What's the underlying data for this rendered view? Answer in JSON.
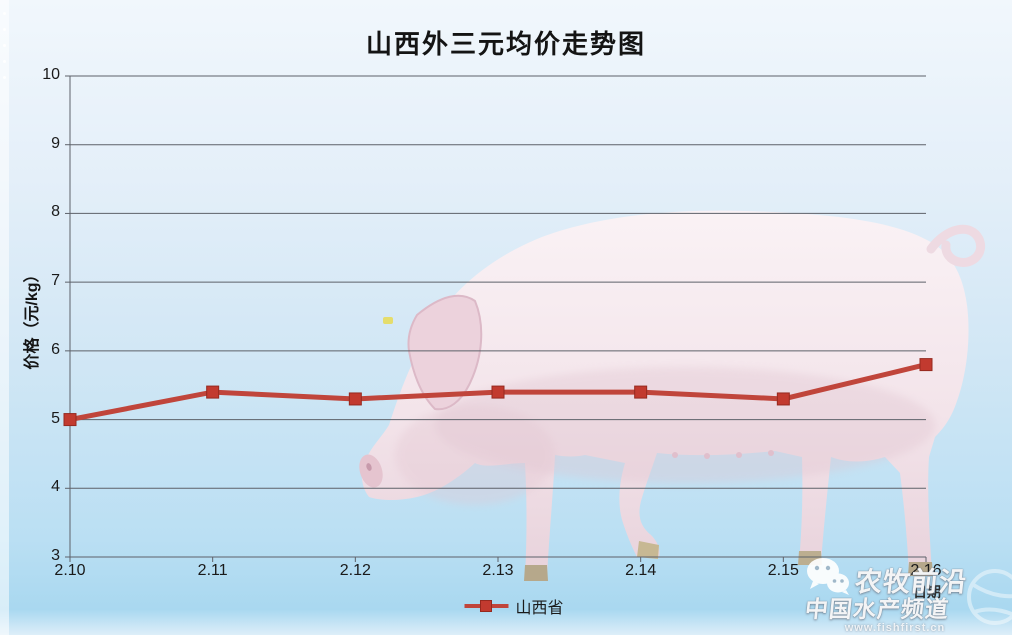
{
  "title": "山西外三元均价走势图",
  "chart_data": {
    "type": "line",
    "title": "山西外三元均价走势图",
    "categories": [
      "2.10",
      "2.11",
      "2.12",
      "2.13",
      "2.14",
      "2.15",
      "2.16"
    ],
    "series": [
      {
        "name": "山西省",
        "values": [
          5.0,
          5.4,
          5.3,
          5.4,
          5.4,
          5.3,
          5.8
        ]
      }
    ],
    "xlabel": "日期",
    "ylabel": "价格（元/kg）",
    "ylim": [
      3,
      10
    ],
    "yticks": [
      3,
      4,
      5,
      6,
      7,
      8,
      9,
      10
    ],
    "grid": true,
    "legend_position": "bottom",
    "marker": "square"
  },
  "legend": {
    "items": [
      {
        "label": "山西省",
        "color": "#c0453b"
      }
    ]
  },
  "watermark": {
    "wechat_icon": "wechat-icon",
    "brand_top": "农牧前沿",
    "brand_bottom": "中国水产频道",
    "url": "www.fishfirst.cn"
  },
  "colors": {
    "line": "#c0453b",
    "marker": "#c23a2f",
    "marker_edge": "#96291f",
    "grid": "#5d6169",
    "bg_top": "#f1f7fc",
    "bg_bottom": "#a9d8f0"
  }
}
